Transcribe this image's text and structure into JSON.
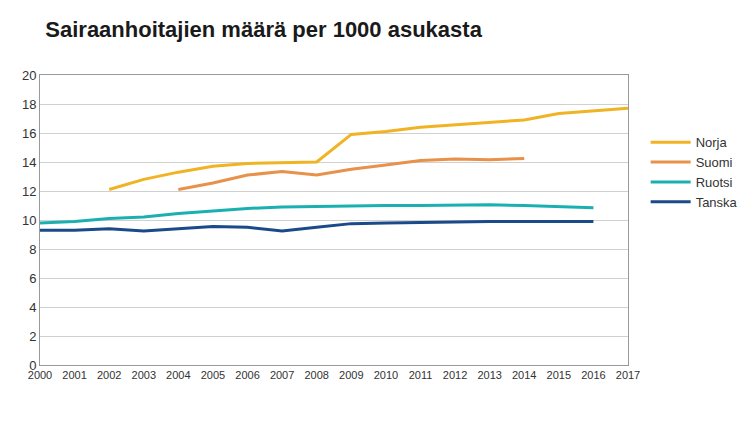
{
  "chart_data": {
    "type": "line",
    "title": "Sairaanhoitajien määrä per 1000 asukasta",
    "categories": [
      "2000",
      "2001",
      "2002",
      "2003",
      "2004",
      "2005",
      "2006",
      "2007",
      "2008",
      "2009",
      "2010",
      "2011",
      "2012",
      "2013",
      "2014",
      "2015",
      "2016",
      "2017"
    ],
    "series": [
      {
        "name": "Norja",
        "color": "#f0b323",
        "values": [
          null,
          null,
          12.1,
          12.8,
          13.3,
          13.7,
          13.9,
          13.95,
          14.0,
          15.9,
          16.1,
          16.4,
          16.55,
          16.7,
          16.9,
          17.35,
          17.5,
          17.7
        ]
      },
      {
        "name": "Suomi",
        "color": "#e8914a",
        "values": [
          null,
          null,
          null,
          null,
          12.1,
          12.55,
          13.1,
          13.35,
          13.1,
          13.5,
          13.8,
          14.1,
          14.2,
          14.15,
          14.25,
          null,
          null,
          null
        ]
      },
      {
        "name": "Ruotsi",
        "color": "#1bb0b0",
        "values": [
          9.8,
          9.9,
          10.1,
          10.2,
          10.45,
          10.65,
          10.8,
          10.9,
          10.95,
          10.95,
          11.0,
          11.0,
          11.05,
          11.05,
          11.0,
          10.9,
          10.85,
          null
        ]
      },
      {
        "name": "Tanska",
        "color": "#1a4a8a",
        "values": [
          9.3,
          9.3,
          9.4,
          9.25,
          9.4,
          9.55,
          9.5,
          9.25,
          9.5,
          9.75,
          9.8,
          9.85,
          9.9,
          9.9,
          9.9,
          9.9,
          9.9,
          null
        ]
      }
    ],
    "ylim": [
      0,
      20
    ],
    "yticks": [
      0,
      2,
      4,
      6,
      8,
      10,
      12,
      14,
      16,
      18,
      20
    ],
    "grid": true,
    "legend": "right"
  }
}
